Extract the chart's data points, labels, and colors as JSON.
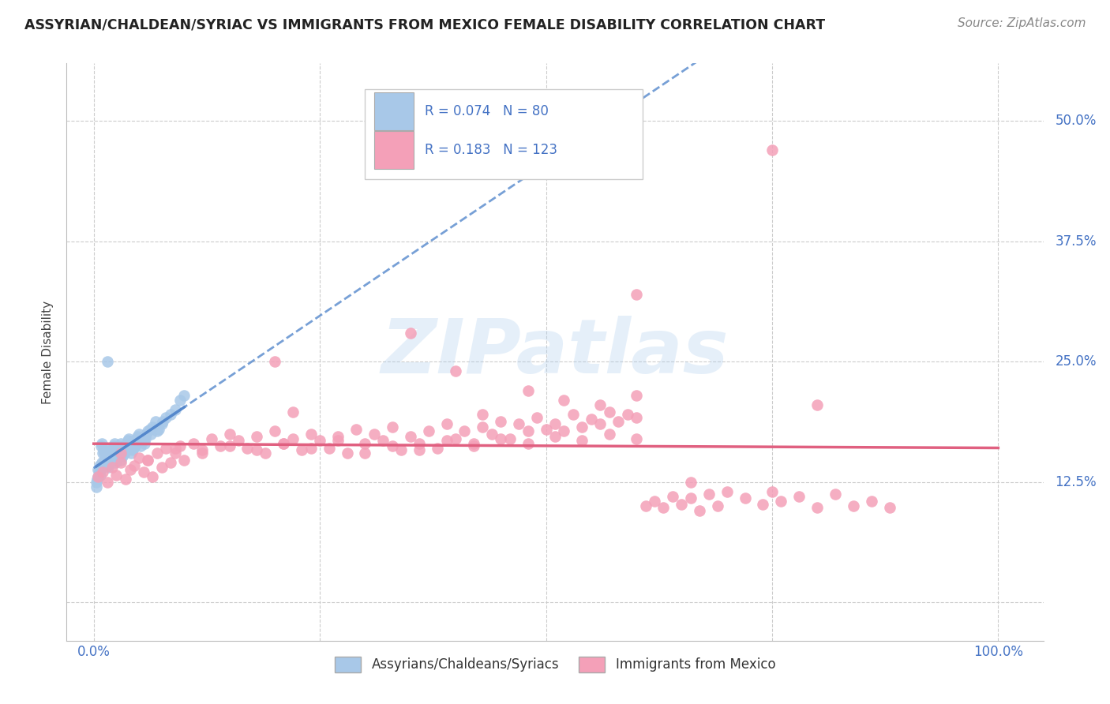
{
  "title": "ASSYRIAN/CHALDEAN/SYRIAC VS IMMIGRANTS FROM MEXICO FEMALE DISABILITY CORRELATION CHART",
  "source": "Source: ZipAtlas.com",
  "ylabel": "Female Disability",
  "R1": 0.074,
  "N1": 80,
  "R2": 0.183,
  "N2": 123,
  "color1": "#a8c8e8",
  "color2": "#f4a0b8",
  "trend1_color": "#5588cc",
  "trend2_color": "#e06080",
  "watermark": "ZIPatlas",
  "legend1_label": "Assyrians/Chaldeans/Syriacs",
  "legend2_label": "Immigrants from Mexico",
  "xlim": [
    -0.03,
    1.05
  ],
  "ylim": [
    -0.04,
    0.56
  ],
  "blue_x": [
    0.005,
    0.003,
    0.008,
    0.006,
    0.004,
    0.007,
    0.005,
    0.009,
    0.003,
    0.006,
    0.01,
    0.012,
    0.008,
    0.015,
    0.011,
    0.013,
    0.009,
    0.016,
    0.014,
    0.012,
    0.018,
    0.02,
    0.015,
    0.022,
    0.017,
    0.019,
    0.021,
    0.016,
    0.023,
    0.018,
    0.025,
    0.028,
    0.022,
    0.03,
    0.026,
    0.024,
    0.029,
    0.027,
    0.031,
    0.025,
    0.033,
    0.035,
    0.03,
    0.038,
    0.032,
    0.036,
    0.034,
    0.039,
    0.037,
    0.04,
    0.042,
    0.045,
    0.041,
    0.048,
    0.043,
    0.047,
    0.044,
    0.05,
    0.046,
    0.049,
    0.055,
    0.058,
    0.052,
    0.06,
    0.056,
    0.062,
    0.057,
    0.065,
    0.063,
    0.068,
    0.07,
    0.075,
    0.072,
    0.08,
    0.076,
    0.085,
    0.09,
    0.095,
    0.1,
    0.015
  ],
  "blue_y": [
    0.13,
    0.125,
    0.14,
    0.135,
    0.128,
    0.132,
    0.138,
    0.145,
    0.12,
    0.142,
    0.155,
    0.148,
    0.162,
    0.15,
    0.158,
    0.145,
    0.165,
    0.152,
    0.16,
    0.155,
    0.148,
    0.158,
    0.142,
    0.162,
    0.145,
    0.155,
    0.15,
    0.14,
    0.165,
    0.148,
    0.155,
    0.16,
    0.148,
    0.165,
    0.15,
    0.145,
    0.158,
    0.152,
    0.162,
    0.148,
    0.155,
    0.162,
    0.148,
    0.168,
    0.152,
    0.16,
    0.155,
    0.17,
    0.158,
    0.165,
    0.16,
    0.168,
    0.155,
    0.172,
    0.158,
    0.165,
    0.16,
    0.175,
    0.162,
    0.17,
    0.168,
    0.175,
    0.162,
    0.178,
    0.165,
    0.18,
    0.17,
    0.182,
    0.175,
    0.188,
    0.178,
    0.185,
    0.18,
    0.192,
    0.188,
    0.195,
    0.2,
    0.21,
    0.215,
    0.25
  ],
  "pink_x": [
    0.005,
    0.01,
    0.015,
    0.02,
    0.025,
    0.03,
    0.035,
    0.04,
    0.045,
    0.05,
    0.055,
    0.06,
    0.065,
    0.07,
    0.075,
    0.08,
    0.085,
    0.09,
    0.095,
    0.1,
    0.11,
    0.12,
    0.13,
    0.14,
    0.15,
    0.16,
    0.17,
    0.18,
    0.19,
    0.2,
    0.21,
    0.22,
    0.23,
    0.24,
    0.25,
    0.26,
    0.27,
    0.28,
    0.29,
    0.3,
    0.31,
    0.32,
    0.33,
    0.34,
    0.35,
    0.36,
    0.37,
    0.38,
    0.39,
    0.4,
    0.41,
    0.42,
    0.43,
    0.44,
    0.45,
    0.46,
    0.47,
    0.48,
    0.49,
    0.5,
    0.51,
    0.52,
    0.53,
    0.54,
    0.55,
    0.56,
    0.57,
    0.58,
    0.59,
    0.6,
    0.61,
    0.62,
    0.63,
    0.64,
    0.65,
    0.66,
    0.67,
    0.68,
    0.69,
    0.7,
    0.72,
    0.74,
    0.75,
    0.76,
    0.78,
    0.8,
    0.82,
    0.84,
    0.86,
    0.88,
    0.03,
    0.06,
    0.09,
    0.12,
    0.15,
    0.18,
    0.21,
    0.24,
    0.27,
    0.3,
    0.33,
    0.36,
    0.39,
    0.42,
    0.45,
    0.48,
    0.51,
    0.54,
    0.57,
    0.6,
    0.48,
    0.52,
    0.56,
    0.6,
    0.75,
    0.2,
    0.4,
    0.6,
    0.8,
    0.35,
    0.43,
    0.22,
    0.66
  ],
  "pink_y": [
    0.13,
    0.135,
    0.125,
    0.14,
    0.132,
    0.145,
    0.128,
    0.138,
    0.142,
    0.15,
    0.135,
    0.148,
    0.13,
    0.155,
    0.14,
    0.16,
    0.145,
    0.155,
    0.162,
    0.148,
    0.165,
    0.158,
    0.17,
    0.162,
    0.175,
    0.168,
    0.16,
    0.172,
    0.155,
    0.178,
    0.165,
    0.17,
    0.158,
    0.175,
    0.168,
    0.16,
    0.172,
    0.155,
    0.18,
    0.165,
    0.175,
    0.168,
    0.182,
    0.158,
    0.172,
    0.165,
    0.178,
    0.16,
    0.185,
    0.17,
    0.178,
    0.165,
    0.182,
    0.175,
    0.188,
    0.17,
    0.185,
    0.178,
    0.192,
    0.18,
    0.185,
    0.178,
    0.195,
    0.182,
    0.19,
    0.185,
    0.198,
    0.188,
    0.195,
    0.192,
    0.1,
    0.105,
    0.098,
    0.11,
    0.102,
    0.108,
    0.095,
    0.112,
    0.1,
    0.115,
    0.108,
    0.102,
    0.115,
    0.105,
    0.11,
    0.098,
    0.112,
    0.1,
    0.105,
    0.098,
    0.155,
    0.148,
    0.16,
    0.155,
    0.162,
    0.158,
    0.165,
    0.16,
    0.168,
    0.155,
    0.162,
    0.158,
    0.168,
    0.162,
    0.17,
    0.165,
    0.172,
    0.168,
    0.175,
    0.17,
    0.22,
    0.21,
    0.205,
    0.215,
    0.47,
    0.25,
    0.24,
    0.32,
    0.205,
    0.28,
    0.195,
    0.198,
    0.125
  ]
}
